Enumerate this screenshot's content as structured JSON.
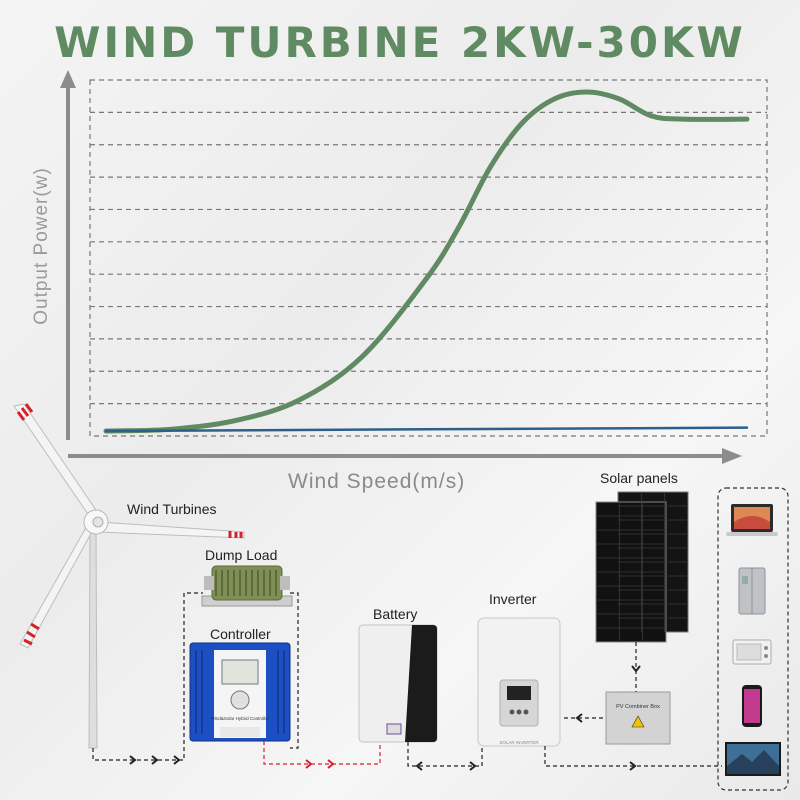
{
  "title": "WIND TURBINE 2KW-30KW",
  "chart_data": {
    "type": "line",
    "title": "WIND TURBINE 2KW-30KW",
    "xlabel": "Wind Speed(m/s)",
    "ylabel": "Output Power(w)",
    "xlim": [
      0,
      1
    ],
    "ylim": [
      0,
      1
    ],
    "grid": true,
    "series": [
      {
        "color": "#5f8a62",
        "x": [
          0,
          0.1,
          0.2,
          0.3,
          0.4,
          0.5,
          0.55,
          0.6,
          0.65,
          0.7,
          0.75,
          0.8,
          0.85,
          0.9,
          1.0
        ],
        "y": [
          0,
          0.005,
          0.03,
          0.09,
          0.22,
          0.45,
          0.6,
          0.78,
          0.91,
          0.98,
          1.0,
          0.98,
          0.93,
          0.92,
          0.92
        ]
      },
      {
        "color": "#2e5f8a",
        "x": [
          0,
          1.0
        ],
        "y": [
          0,
          0.01
        ]
      }
    ]
  },
  "diagram": {
    "wind_turbines": "Wind Turbines",
    "dump_load": "Dump Load",
    "controller": "Controller",
    "battery": "Battery",
    "inverter": "Inverter",
    "solar_panels": "Solar panels",
    "pv_combiner_box": "PV Combiner Box",
    "controller_brand": "Wind&Solar Hybrid Controller",
    "inverter_brand": "SOLAR INVERTER"
  }
}
